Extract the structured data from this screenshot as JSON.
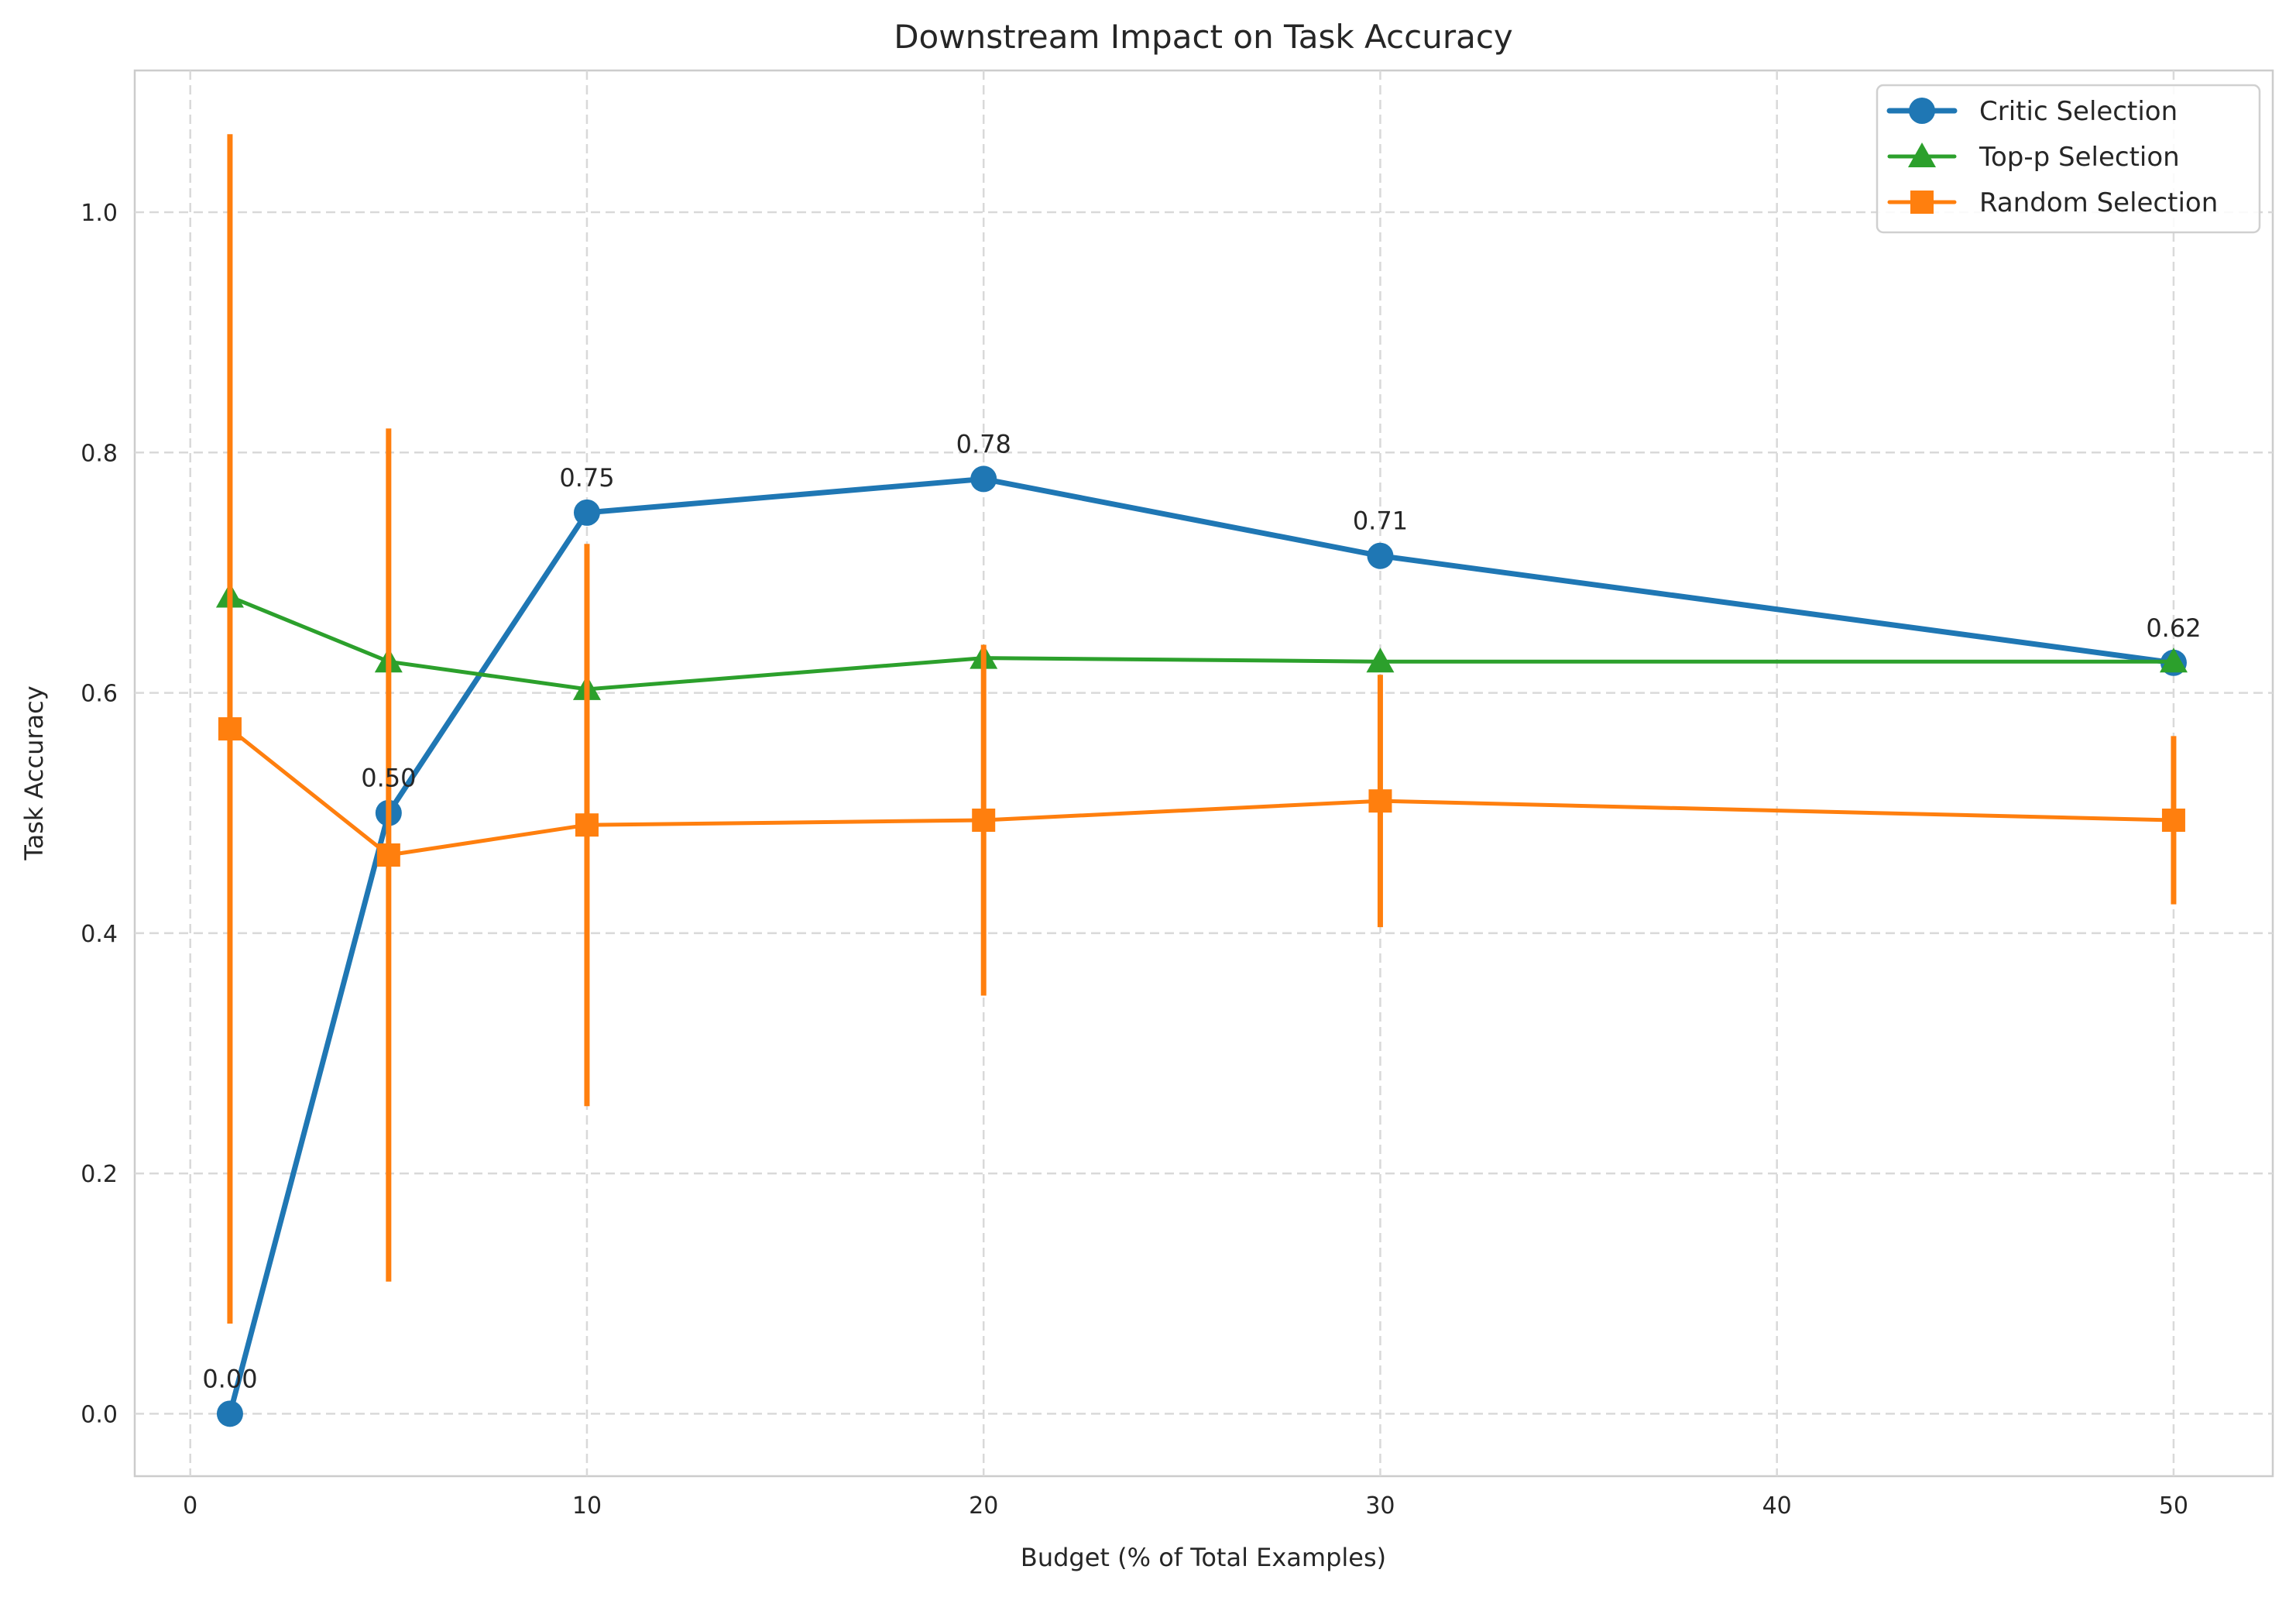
{
  "chart_data": {
    "type": "line",
    "title": "Downstream Impact on Task Accuracy",
    "xlabel": "Budget (% of Total Examples)",
    "ylabel": "Task Accuracy",
    "xlim": [
      -1.4,
      52.5
    ],
    "ylim": [
      -0.052,
      1.118
    ],
    "xticks": [
      0,
      10,
      20,
      30,
      40,
      50
    ],
    "xtick_labels": [
      "0",
      "10",
      "20",
      "30",
      "40",
      "50"
    ],
    "yticks": [
      0.0,
      0.2,
      0.4,
      0.6,
      0.8,
      1.0
    ],
    "ytick_labels": [
      "0.0",
      "0.2",
      "0.4",
      "0.6",
      "0.8",
      "1.0"
    ],
    "grid": true,
    "legend_placement": "top-right",
    "x": [
      1,
      5,
      10,
      20,
      30,
      50
    ],
    "series": [
      {
        "name": "Critic Selection",
        "color": "#1f77b4",
        "marker": "circle",
        "values": [
          0.0,
          0.5,
          0.75,
          0.778,
          0.714,
          0.625
        ],
        "annotations": [
          "0.00",
          "0.50",
          "0.75",
          "0.78",
          "0.71",
          "0.62"
        ]
      },
      {
        "name": "Top-p Selection",
        "color": "#2ca02c",
        "marker": "triangle",
        "values": [
          0.68,
          0.626,
          0.603,
          0.629,
          0.626,
          0.626
        ]
      },
      {
        "name": "Random Selection",
        "color": "#ff7f0e",
        "marker": "square",
        "values": [
          0.57,
          0.465,
          0.49,
          0.494,
          0.51,
          0.494
        ],
        "errors": [
          0.495,
          0.355,
          0.234,
          0.146,
          0.105,
          0.07
        ]
      }
    ]
  }
}
